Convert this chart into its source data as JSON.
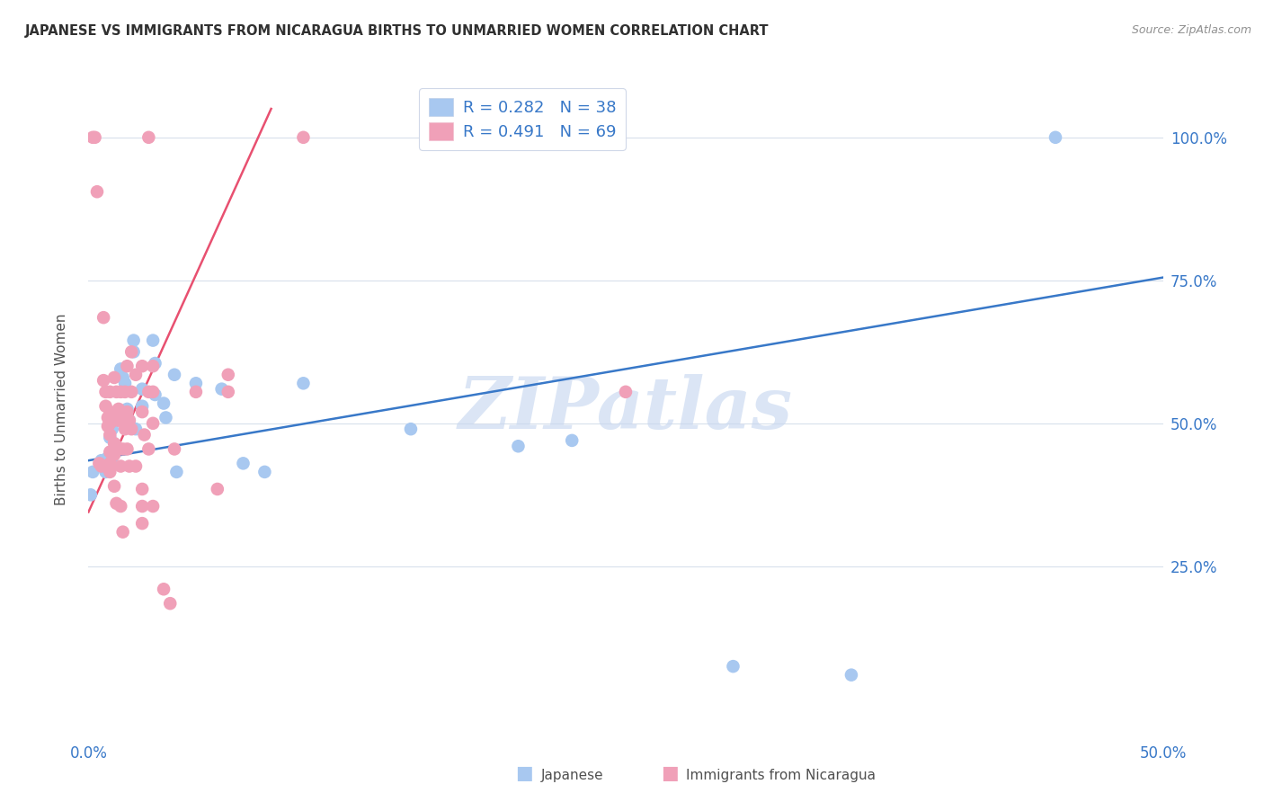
{
  "title": "JAPANESE VS IMMIGRANTS FROM NICARAGUA BIRTHS TO UNMARRIED WOMEN CORRELATION CHART",
  "source": "Source: ZipAtlas.com",
  "ylabel": "Births to Unmarried Women",
  "ytick_labels": [
    "25.0%",
    "50.0%",
    "75.0%",
    "100.0%"
  ],
  "ytick_values": [
    0.25,
    0.5,
    0.75,
    1.0
  ],
  "xlim": [
    0.0,
    0.5
  ],
  "ylim": [
    -0.05,
    1.1
  ],
  "blue_color": "#A8C8F0",
  "pink_color": "#F0A0B8",
  "blue_line_color": "#3878C8",
  "pink_line_color": "#E85070",
  "watermark": "ZIPatlas",
  "legend_blue_r": "R = 0.282",
  "legend_blue_n": "N = 38",
  "legend_pink_r": "R = 0.491",
  "legend_pink_n": "N = 69",
  "japanese_points": [
    [
      0.001,
      0.375
    ],
    [
      0.002,
      0.415
    ],
    [
      0.006,
      0.435
    ],
    [
      0.007,
      0.425
    ],
    [
      0.008,
      0.415
    ],
    [
      0.009,
      0.44
    ],
    [
      0.01,
      0.475
    ],
    [
      0.011,
      0.49
    ],
    [
      0.011,
      0.44
    ],
    [
      0.013,
      0.455
    ],
    [
      0.015,
      0.595
    ],
    [
      0.016,
      0.58
    ],
    [
      0.017,
      0.57
    ],
    [
      0.018,
      0.525
    ],
    [
      0.019,
      0.505
    ],
    [
      0.021,
      0.645
    ],
    [
      0.021,
      0.625
    ],
    [
      0.022,
      0.49
    ],
    [
      0.025,
      0.56
    ],
    [
      0.025,
      0.53
    ],
    [
      0.03,
      0.645
    ],
    [
      0.031,
      0.605
    ],
    [
      0.031,
      0.55
    ],
    [
      0.035,
      0.535
    ],
    [
      0.036,
      0.51
    ],
    [
      0.04,
      0.585
    ],
    [
      0.041,
      0.415
    ],
    [
      0.05,
      0.57
    ],
    [
      0.062,
      0.56
    ],
    [
      0.072,
      0.43
    ],
    [
      0.082,
      0.415
    ],
    [
      0.1,
      0.57
    ],
    [
      0.15,
      0.49
    ],
    [
      0.2,
      0.46
    ],
    [
      0.225,
      0.47
    ],
    [
      0.3,
      0.075
    ],
    [
      0.355,
      0.06
    ],
    [
      0.45,
      1.0
    ]
  ],
  "nicaragua_points": [
    [
      0.002,
      1.0
    ],
    [
      0.003,
      1.0
    ],
    [
      0.004,
      0.905
    ],
    [
      0.005,
      0.43
    ],
    [
      0.006,
      0.425
    ],
    [
      0.007,
      0.685
    ],
    [
      0.007,
      0.575
    ],
    [
      0.008,
      0.555
    ],
    [
      0.008,
      0.53
    ],
    [
      0.009,
      0.51
    ],
    [
      0.009,
      0.495
    ],
    [
      0.01,
      0.555
    ],
    [
      0.01,
      0.52
    ],
    [
      0.01,
      0.5
    ],
    [
      0.01,
      0.48
    ],
    [
      0.01,
      0.45
    ],
    [
      0.01,
      0.43
    ],
    [
      0.01,
      0.415
    ],
    [
      0.012,
      0.58
    ],
    [
      0.012,
      0.51
    ],
    [
      0.012,
      0.465
    ],
    [
      0.012,
      0.445
    ],
    [
      0.012,
      0.39
    ],
    [
      0.013,
      0.555
    ],
    [
      0.013,
      0.46
    ],
    [
      0.013,
      0.36
    ],
    [
      0.014,
      0.525
    ],
    [
      0.014,
      0.505
    ],
    [
      0.015,
      0.555
    ],
    [
      0.015,
      0.505
    ],
    [
      0.015,
      0.425
    ],
    [
      0.015,
      0.355
    ],
    [
      0.016,
      0.505
    ],
    [
      0.016,
      0.455
    ],
    [
      0.016,
      0.31
    ],
    [
      0.017,
      0.555
    ],
    [
      0.017,
      0.49
    ],
    [
      0.018,
      0.6
    ],
    [
      0.018,
      0.52
    ],
    [
      0.018,
      0.455
    ],
    [
      0.019,
      0.505
    ],
    [
      0.019,
      0.425
    ],
    [
      0.02,
      0.625
    ],
    [
      0.02,
      0.555
    ],
    [
      0.02,
      0.49
    ],
    [
      0.022,
      0.585
    ],
    [
      0.022,
      0.425
    ],
    [
      0.025,
      0.6
    ],
    [
      0.025,
      0.52
    ],
    [
      0.025,
      0.385
    ],
    [
      0.025,
      0.355
    ],
    [
      0.025,
      0.325
    ],
    [
      0.026,
      0.48
    ],
    [
      0.028,
      1.0
    ],
    [
      0.028,
      0.555
    ],
    [
      0.028,
      0.455
    ],
    [
      0.03,
      0.6
    ],
    [
      0.03,
      0.555
    ],
    [
      0.03,
      0.5
    ],
    [
      0.03,
      0.355
    ],
    [
      0.035,
      0.21
    ],
    [
      0.038,
      0.185
    ],
    [
      0.04,
      0.455
    ],
    [
      0.05,
      0.555
    ],
    [
      0.06,
      0.385
    ],
    [
      0.065,
      0.585
    ],
    [
      0.065,
      0.555
    ],
    [
      0.1,
      1.0
    ],
    [
      0.25,
      0.555
    ]
  ],
  "blue_line_x": [
    0.0,
    0.5
  ],
  "blue_line_y": [
    0.435,
    0.755
  ],
  "pink_line_x": [
    0.0,
    0.085
  ],
  "pink_line_y": [
    0.345,
    1.05
  ]
}
